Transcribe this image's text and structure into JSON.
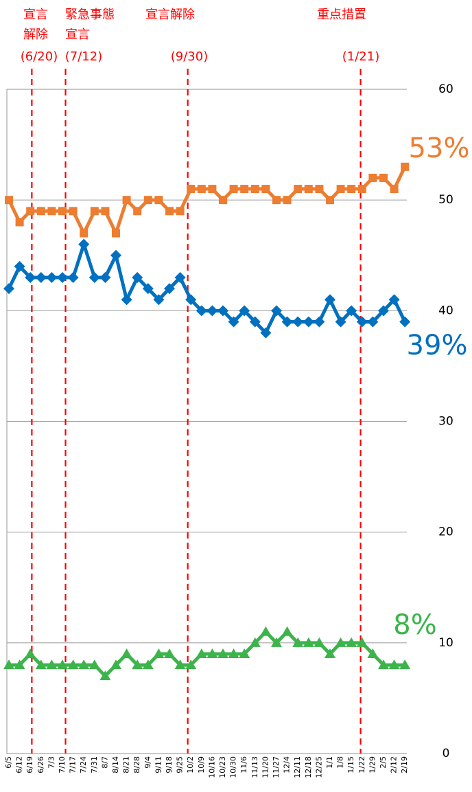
{
  "chart_data": {
    "type": "line",
    "categories": [
      "6/5",
      "6/12",
      "6/19",
      "6/26",
      "7/3",
      "7/10",
      "7/17",
      "7/24",
      "7/31",
      "8/7",
      "8/14",
      "8/21",
      "8/28",
      "9/4",
      "9/11",
      "9/18",
      "9/25",
      "10/2",
      "10/9",
      "10/16",
      "10/23",
      "10/30",
      "11/6",
      "11/13",
      "11/20",
      "11/27",
      "12/4",
      "12/11",
      "12/18",
      "12/25",
      "1/1",
      "1/8",
      "1/15",
      "1/22",
      "1/29",
      "2/5",
      "2/12",
      "2/19"
    ],
    "series": [
      {
        "color": "#ed7d31",
        "marker": "square",
        "end_label": "53%",
        "values": [
          50,
          48,
          49,
          49,
          49,
          49,
          49,
          47,
          49,
          49,
          47,
          50,
          49,
          50,
          50,
          49,
          49,
          51,
          51,
          51,
          50,
          51,
          51,
          51,
          51,
          50,
          50,
          51,
          51,
          51,
          50,
          51,
          51,
          51,
          52,
          52,
          51,
          53
        ]
      },
      {
        "color": "#0070c0",
        "marker": "diamond",
        "end_label": "39%",
        "values": [
          42,
          44,
          43,
          43,
          43,
          43,
          43,
          46,
          43,
          43,
          45,
          41,
          43,
          42,
          41,
          42,
          43,
          41,
          40,
          40,
          40,
          39,
          40,
          39,
          38,
          40,
          39,
          39,
          39,
          39,
          41,
          39,
          40,
          39,
          39,
          40,
          41,
          39
        ]
      },
      {
        "color": "#3cb44b",
        "marker": "triangle",
        "end_label": "8%",
        "values": [
          8,
          8,
          9,
          8,
          8,
          8,
          8,
          8,
          8,
          7,
          8,
          9,
          8,
          8,
          9,
          9,
          8,
          8,
          9,
          9,
          9,
          9,
          9,
          10,
          11,
          10,
          11,
          10,
          10,
          10,
          9,
          10,
          10,
          10,
          9,
          8,
          8,
          8
        ]
      }
    ],
    "events": [
      {
        "label": [
          "宣言",
          "解除"
        ],
        "date": "(6/20)",
        "at": 2.14
      },
      {
        "label": [
          "緊急事態",
          "宣言"
        ],
        "date": "(7/12)",
        "at": 5.29
      },
      {
        "label": [
          "宣言解除"
        ],
        "date": "(9/30)",
        "at": 16.71
      },
      {
        "label": [
          "重点措置"
        ],
        "date": "(1/21)",
        "at": 32.86
      }
    ],
    "event_color": "#ff0000",
    "ylim": [
      0,
      60
    ],
    "yticks": [
      0,
      10,
      20,
      30,
      40,
      50,
      60
    ],
    "grid": true
  }
}
